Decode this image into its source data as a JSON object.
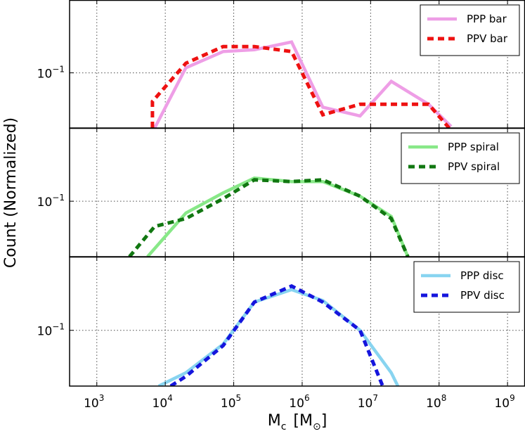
{
  "chart_data": {
    "type": "line",
    "xlabel": "M",
    "xlabel_sub": "c",
    "xlabel_unit_open": "[M",
    "xlabel_unit_sub": "⊙",
    "xlabel_unit_close": "]",
    "ylabel": "Count   (Normalized)",
    "x_scale": "log",
    "y_scale": "log",
    "xlim": [
      400,
      1800000000
    ],
    "ylim": [
      0.035,
      0.4
    ],
    "grid": true,
    "x_tick_labels": [
      {
        "base": "10",
        "exp": "3",
        "value": 1000
      },
      {
        "base": "10",
        "exp": "4",
        "value": 10000
      },
      {
        "base": "10",
        "exp": "5",
        "value": 100000
      },
      {
        "base": "10",
        "exp": "6",
        "value": 1000000
      },
      {
        "base": "10",
        "exp": "7",
        "value": 10000000
      },
      {
        "base": "10",
        "exp": "8",
        "value": 100000000
      },
      {
        "base": "10",
        "exp": "9",
        "value": 1000000000
      }
    ],
    "y_tick_label": {
      "base": "10",
      "exp": "−1",
      "value": 0.1
    },
    "panels": [
      {
        "legend_position": "top-right",
        "series": [
          {
            "name": "PPP bar",
            "color": "#ee9ee6",
            "style": "solid",
            "x": [
              5000,
              7000,
              20000,
              70000,
              200000,
              700000,
              2000000,
              7000000,
              20000000,
              70000000,
              150000000
            ],
            "y": [
              0.02,
              0.035,
              0.11,
              0.15,
              0.155,
              0.18,
              0.052,
              0.044,
              0.085,
              0.055,
              0.036
            ]
          },
          {
            "name": "PPV bar",
            "color": "#ee1111",
            "style": "dashed",
            "x": [
              6500,
              6500,
              20000,
              70000,
              200000,
              700000,
              2000000,
              7000000,
              20000000,
              70000000,
              140000000
            ],
            "y": [
              0.035,
              0.058,
              0.12,
              0.165,
              0.165,
              0.15,
              0.045,
              0.055,
              0.055,
              0.055,
              0.035
            ]
          }
        ]
      },
      {
        "legend_position": "top-right",
        "series": [
          {
            "name": "PPP spiral",
            "color": "#88e888",
            "style": "solid",
            "x": [
              5500,
              20000,
              70000,
              200000,
              700000,
              2000000,
              7000000,
              20000000,
              35000000
            ],
            "y": [
              0.035,
              0.08,
              0.117,
              0.155,
              0.145,
              0.145,
              0.11,
              0.075,
              0.035
            ]
          },
          {
            "name": "PPV spiral",
            "color": "#117711",
            "style": "dashed",
            "x": [
              3000,
              7000,
              20000,
              70000,
              200000,
              700000,
              2000000,
              7000000,
              20000000,
              35000000
            ],
            "y": [
              0.035,
              0.062,
              0.072,
              0.105,
              0.15,
              0.145,
              0.15,
              0.11,
              0.072,
              0.035
            ]
          }
        ]
      },
      {
        "legend_position": "top-right",
        "series": [
          {
            "name": "PPP disc",
            "color": "#88d4f0",
            "style": "solid",
            "x": [
              8000,
              20000,
              70000,
              200000,
              700000,
              2000000,
              7000000,
              20000000,
              25000000
            ],
            "y": [
              0.035,
              0.045,
              0.077,
              0.17,
              0.215,
              0.175,
              0.1,
              0.045,
              0.035
            ]
          },
          {
            "name": "PPV disc",
            "color": "#1515dd",
            "style": "dashed",
            "x": [
              12000,
              20000,
              70000,
              200000,
              700000,
              2000000,
              7000000,
              15000000
            ],
            "y": [
              0.035,
              0.042,
              0.075,
              0.17,
              0.23,
              0.17,
              0.1,
              0.035
            ]
          }
        ]
      }
    ]
  }
}
